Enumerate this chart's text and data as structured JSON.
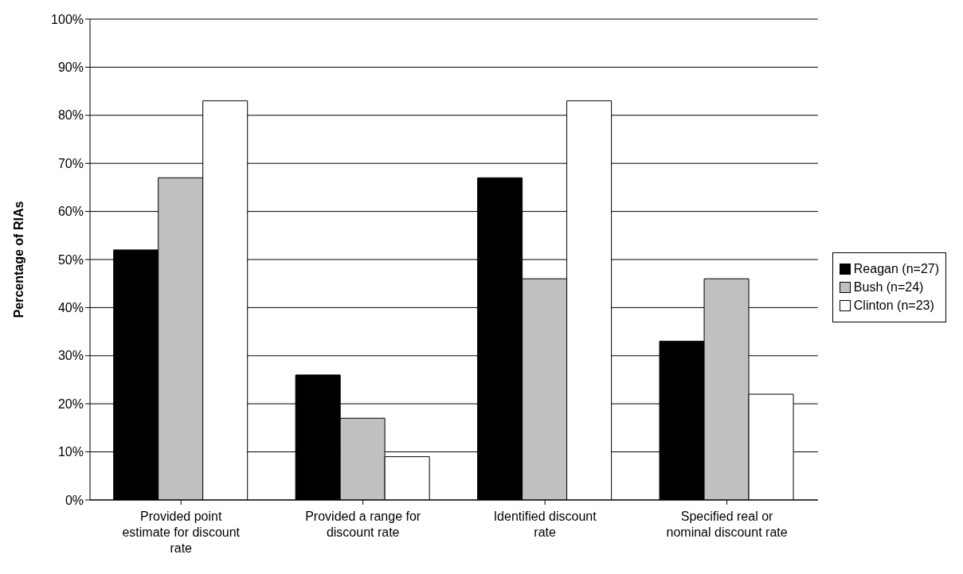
{
  "chart_data": {
    "type": "bar",
    "ylabel": "Percentage of RIAs",
    "categories": [
      "Provided point estimate for discount rate",
      "Provided a range for discount rate",
      "Identified discount rate",
      "Specified real or nominal discount rate"
    ],
    "series": [
      {
        "name": "Reagan (n=27)",
        "color": "#000000",
        "values": [
          52,
          26,
          67,
          33
        ]
      },
      {
        "name": "Bush (n=24)",
        "color": "#c0c0c0",
        "values": [
          67,
          17,
          46,
          46
        ]
      },
      {
        "name": "Clinton (n=23)",
        "color": "#ffffff",
        "values": [
          83,
          9,
          83,
          22
        ]
      }
    ],
    "ylim": [
      0,
      100
    ],
    "yticks": [
      {
        "value": 0,
        "label": "0%"
      },
      {
        "value": 10,
        "label": "10%"
      },
      {
        "value": 20,
        "label": "20%"
      },
      {
        "value": 30,
        "label": "30%"
      },
      {
        "value": 40,
        "label": "40%"
      },
      {
        "value": 50,
        "label": "50%"
      },
      {
        "value": 60,
        "label": "60%"
      },
      {
        "value": 70,
        "label": "70%"
      },
      {
        "value": 80,
        "label": "80%"
      },
      {
        "value": 90,
        "label": "90%"
      },
      {
        "value": 100,
        "label": "100%"
      }
    ],
    "grid": "y",
    "legend": "right"
  }
}
